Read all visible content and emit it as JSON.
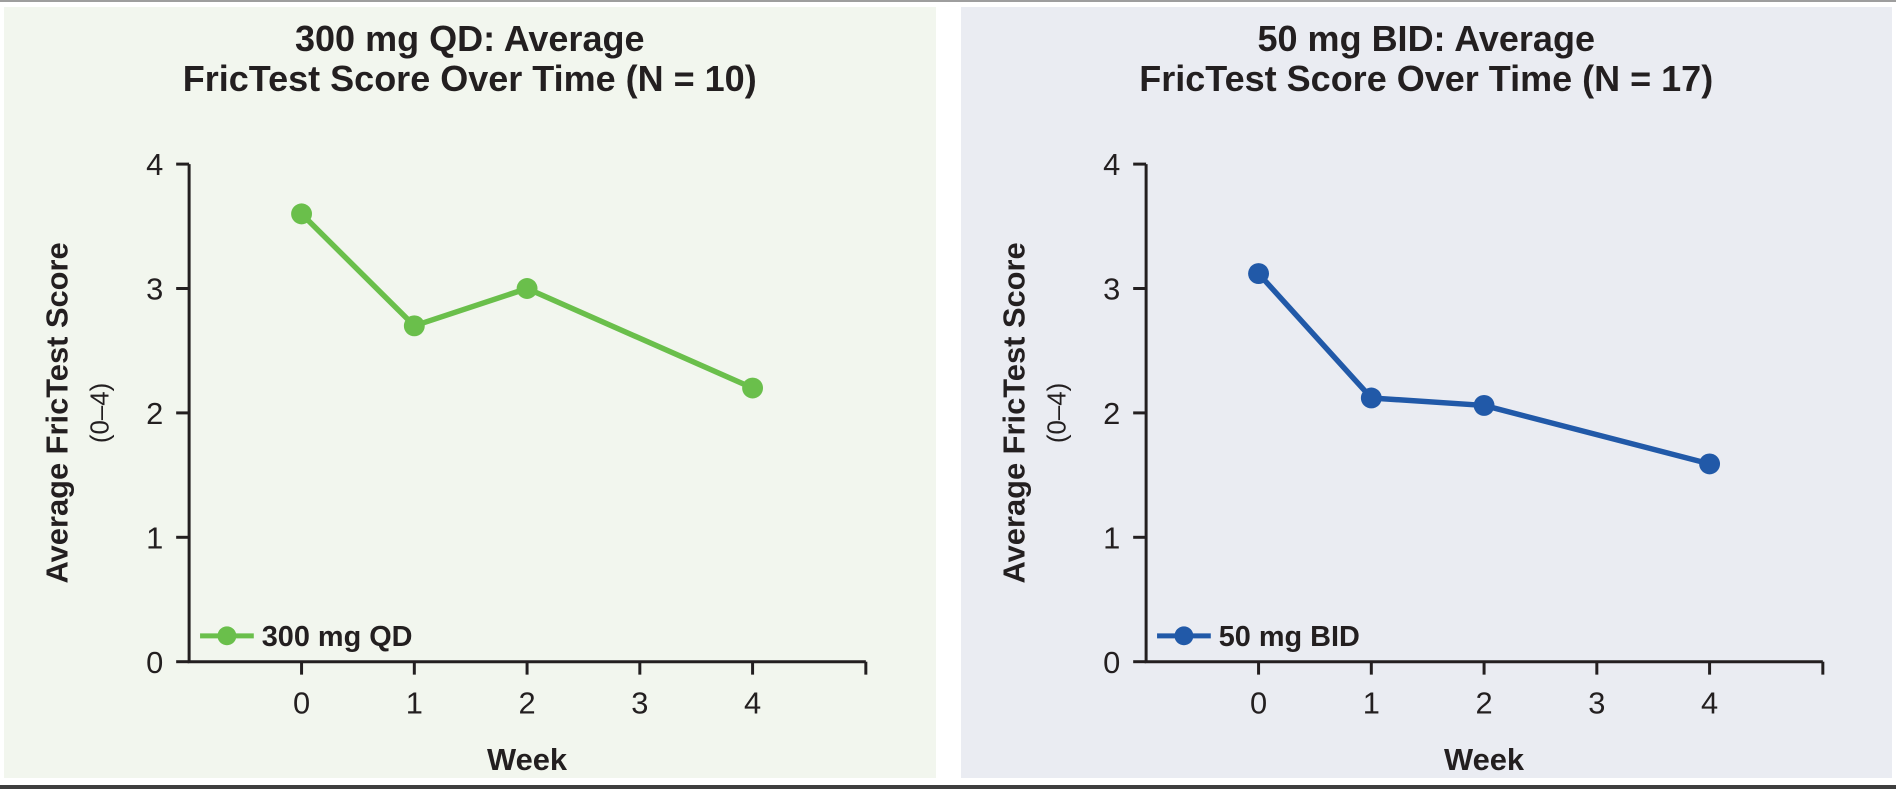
{
  "frame": {
    "top_border_color": "#9e9e9e",
    "bottom_border_color": "#3e3e3e",
    "text_color": "#231f20"
  },
  "chart_data": [
    {
      "type": "line",
      "title_line1": "300 mg QD: Average",
      "title_line2": "FricTest Score Over Time (N = 10)",
      "title": "300 mg QD: Average FricTest Score Over Time (N = 10)",
      "xlabel": "Week",
      "ylabel": "Average FricTest Score",
      "ylabel_sub": "(0–4)",
      "series": [
        {
          "name": "300 mg QD",
          "x": [
            0,
            1,
            2,
            4
          ],
          "values": [
            3.6,
            2.7,
            3.0,
            2.2
          ]
        }
      ],
      "xticks": [
        0,
        1,
        2,
        3,
        4
      ],
      "yticks": [
        0,
        1,
        2,
        3,
        4
      ],
      "xlim": [
        -1,
        5
      ],
      "ylim": [
        0,
        4
      ],
      "grid": false,
      "legend_position": "inside-bottom-left",
      "line_color": "#6abf4b",
      "panel_bg": "#f2f6ee"
    },
    {
      "type": "line",
      "title_line1": "50 mg BID: Average",
      "title_line2": "FricTest Score Over Time (N = 17)",
      "title": "50 mg BID: Average FricTest Score Over Time (N = 17)",
      "xlabel": "Week",
      "ylabel": "Average FricTest Score",
      "ylabel_sub": "(0–4)",
      "series": [
        {
          "name": "50 mg BID",
          "x": [
            0,
            1,
            2,
            4
          ],
          "values": [
            3.12,
            2.12,
            2.06,
            1.59
          ]
        }
      ],
      "xticks": [
        0,
        1,
        2,
        3,
        4
      ],
      "yticks": [
        0,
        1,
        2,
        3,
        4
      ],
      "xlim": [
        -1,
        5
      ],
      "ylim": [
        0,
        4
      ],
      "grid": false,
      "legend_position": "inside-bottom-left",
      "line_color": "#2159a8",
      "panel_bg": "#eaecf2"
    }
  ]
}
